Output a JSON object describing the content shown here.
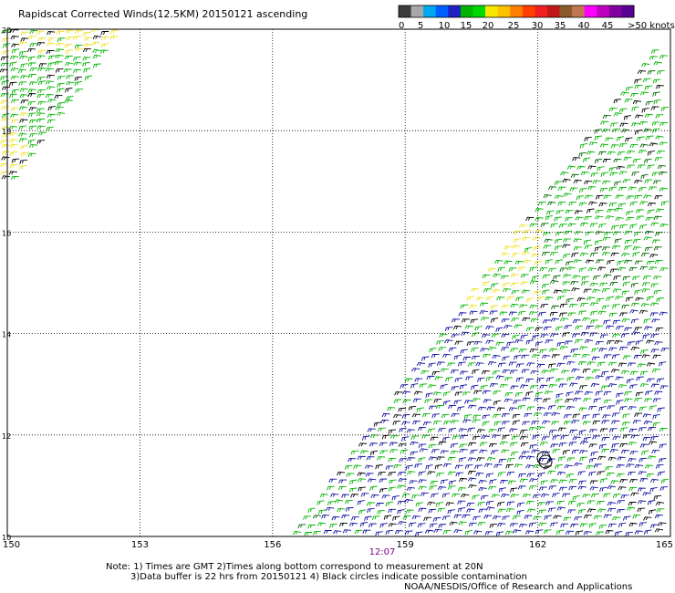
{
  "header": {
    "title": "Rapidscat Corrected Winds(12.5KM) 20150121 ascending"
  },
  "legend": {
    "ticks": [
      "0",
      "5",
      "10",
      "15",
      "20",
      "25",
      "30",
      "35",
      "40",
      "45",
      ">50 knots"
    ],
    "colors": [
      "#3c3c3c",
      "#a8a8a8",
      "#00a8f0",
      "#0060ff",
      "#2020c0",
      "#00b400",
      "#00d800",
      "#f8e800",
      "#ffc000",
      "#ff8000",
      "#ff4000",
      "#f02020",
      "#c01818",
      "#8b5a2b",
      "#c07850",
      "#ff00ff",
      "#c000c0",
      "#8000a0",
      "#5a0090"
    ]
  },
  "map": {
    "lat_labels": [
      "20",
      "18",
      "16",
      "14",
      "12",
      "10"
    ],
    "lon_labels": [
      "150",
      "153",
      "156",
      "159",
      "162",
      "165"
    ],
    "lat_range": [
      10,
      20
    ],
    "lon_range": [
      150,
      165
    ],
    "grid": true,
    "time_label": "12:07"
  },
  "footer": {
    "note_line1": "Note: 1) Times are GMT 2)Times along bottom correspond to measurement at 20N",
    "note_line2": "3)Data buffer is 22 hrs from 20150121 4) Black circles indicate possible contamination",
    "credit": "NOAA/NESDIS/Office of Research and Applications"
  }
}
